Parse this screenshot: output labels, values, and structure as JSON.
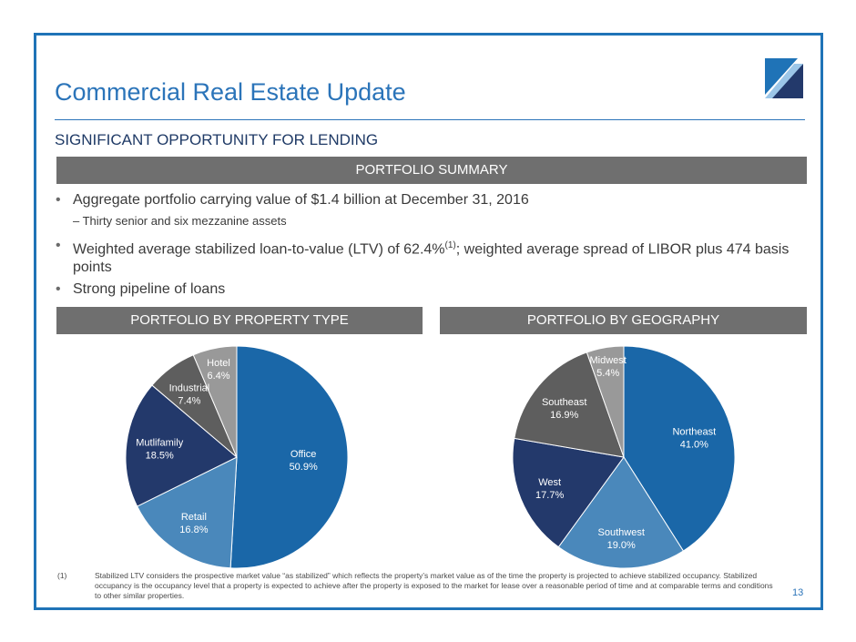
{
  "header": {
    "title": "Commercial Real Estate Update",
    "subtitle": "SIGNIFICANT OPPORTUNITY FOR LENDING"
  },
  "summary": {
    "heading": "PORTFOLIO SUMMARY",
    "bullet1": "Aggregate portfolio carrying value of $1.4 billion at December 31, 2016",
    "sub1": "–  Thirty senior and six mezzanine assets",
    "bullet2_part1": "Weighted average stabilized loan-to-value (LTV) of 62.4%",
    "bullet2_sup": "(1)",
    "bullet2_part2": "; weighted average spread of LIBOR plus 474 basis points",
    "bullet3": "Strong pipeline of loans"
  },
  "property_heading": "PORTFOLIO BY PROPERTY TYPE",
  "geography_heading": "PORTFOLIO BY GEOGRAPHY",
  "colors": {
    "blue_dark": "#1a67a8",
    "blue_mid": "#4a88bb",
    "navy": "#23396b",
    "gray_dark": "#5e5e5e",
    "gray_light": "#999999",
    "accent": "#2b74b9"
  },
  "chart_data": [
    {
      "type": "pie",
      "title": "PORTFOLIO BY PROPERTY TYPE",
      "categories": [
        "Office",
        "Retail",
        "Mutlifamily",
        "Industrial",
        "Hotel"
      ],
      "values": [
        50.9,
        16.8,
        18.5,
        7.4,
        6.4
      ],
      "labels": [
        "50.9%",
        "16.8%",
        "18.5%",
        "7.4%",
        "6.4%"
      ]
    },
    {
      "type": "pie",
      "title": "PORTFOLIO BY GEOGRAPHY",
      "categories": [
        "Northeast",
        "Southwest",
        "West",
        "Southeast",
        "Midwest"
      ],
      "values": [
        41.0,
        19.0,
        17.7,
        16.9,
        5.4
      ],
      "labels": [
        "41.0%",
        "19.0%",
        "17.7%",
        "16.9%",
        "5.4%"
      ]
    }
  ],
  "footnote": {
    "mark": "(1)",
    "text": "Stabilized LTV considers the prospective market value “as stabilized” which reflects the property’s market value as of the time the property is projected to achieve stabilized occupancy. Stabilized occupancy is the occupancy level that a property is expected to achieve after the property is exposed to the market for lease over a reasonable period of time and at comparable terms and conditions to other similar properties."
  },
  "page_number": "13"
}
